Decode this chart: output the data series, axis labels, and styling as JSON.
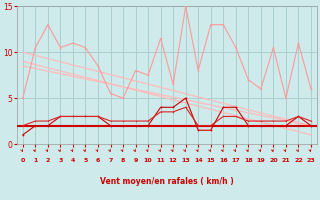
{
  "x": [
    0,
    1,
    2,
    3,
    4,
    5,
    6,
    7,
    8,
    9,
    10,
    11,
    12,
    13,
    14,
    15,
    16,
    17,
    18,
    19,
    20,
    21,
    22,
    23
  ],
  "rafales": [
    5.0,
    10.5,
    13.0,
    10.5,
    11.0,
    10.5,
    8.5,
    5.5,
    5.0,
    8.0,
    7.5,
    11.5,
    6.5,
    15.0,
    8.0,
    13.0,
    13.0,
    10.5,
    7.0,
    6.0,
    10.5,
    5.0,
    11.0,
    6.0
  ],
  "vent_moyen": [
    1.0,
    2.0,
    2.0,
    3.0,
    3.0,
    3.0,
    3.0,
    2.0,
    2.0,
    2.0,
    2.0,
    4.0,
    4.0,
    5.0,
    1.5,
    1.5,
    4.0,
    4.0,
    2.0,
    2.0,
    2.0,
    2.0,
    3.0,
    2.0
  ],
  "vent_median": [
    2.0,
    2.5,
    2.5,
    3.0,
    3.0,
    3.0,
    3.0,
    2.5,
    2.5,
    2.5,
    2.5,
    3.5,
    3.5,
    4.0,
    2.0,
    2.0,
    3.0,
    3.0,
    2.5,
    2.5,
    2.5,
    2.5,
    3.0,
    2.5
  ],
  "flat_line": 2.0,
  "trend1": [
    10.0,
    9.65,
    9.3,
    8.95,
    8.6,
    8.26,
    7.91,
    7.56,
    7.21,
    6.86,
    6.52,
    6.17,
    5.82,
    5.47,
    5.12,
    4.78,
    4.43,
    4.08,
    3.73,
    3.38,
    3.04,
    2.69,
    2.34,
    2.0
  ],
  "trend2": [
    9.0,
    8.65,
    8.3,
    7.95,
    7.6,
    7.26,
    6.91,
    6.56,
    6.21,
    5.86,
    5.52,
    5.17,
    4.82,
    4.47,
    4.12,
    3.78,
    3.43,
    3.08,
    2.73,
    2.38,
    2.04,
    1.69,
    1.34,
    1.0
  ],
  "trend3": [
    8.5,
    8.22,
    7.93,
    7.65,
    7.37,
    7.08,
    6.8,
    6.52,
    6.23,
    5.95,
    5.67,
    5.38,
    5.1,
    4.82,
    4.53,
    4.25,
    3.97,
    3.68,
    3.4,
    3.12,
    2.83,
    2.55,
    2.27,
    2.0
  ],
  "xlim": [
    -0.5,
    23.5
  ],
  "ylim": [
    0,
    15
  ],
  "yticks": [
    0,
    5,
    10,
    15
  ],
  "xlabel": "Vent moyen/en rafales ( km/h )",
  "bg_color": "#ceeaea",
  "grid_color": "#aacece",
  "color_rafales": "#ff9999",
  "color_trend": "#ffbbbb",
  "color_moyen_dark": "#cc0000",
  "color_moyen_med": "#dd2222",
  "tick_color": "#cc0000",
  "label_color": "#cc0000"
}
